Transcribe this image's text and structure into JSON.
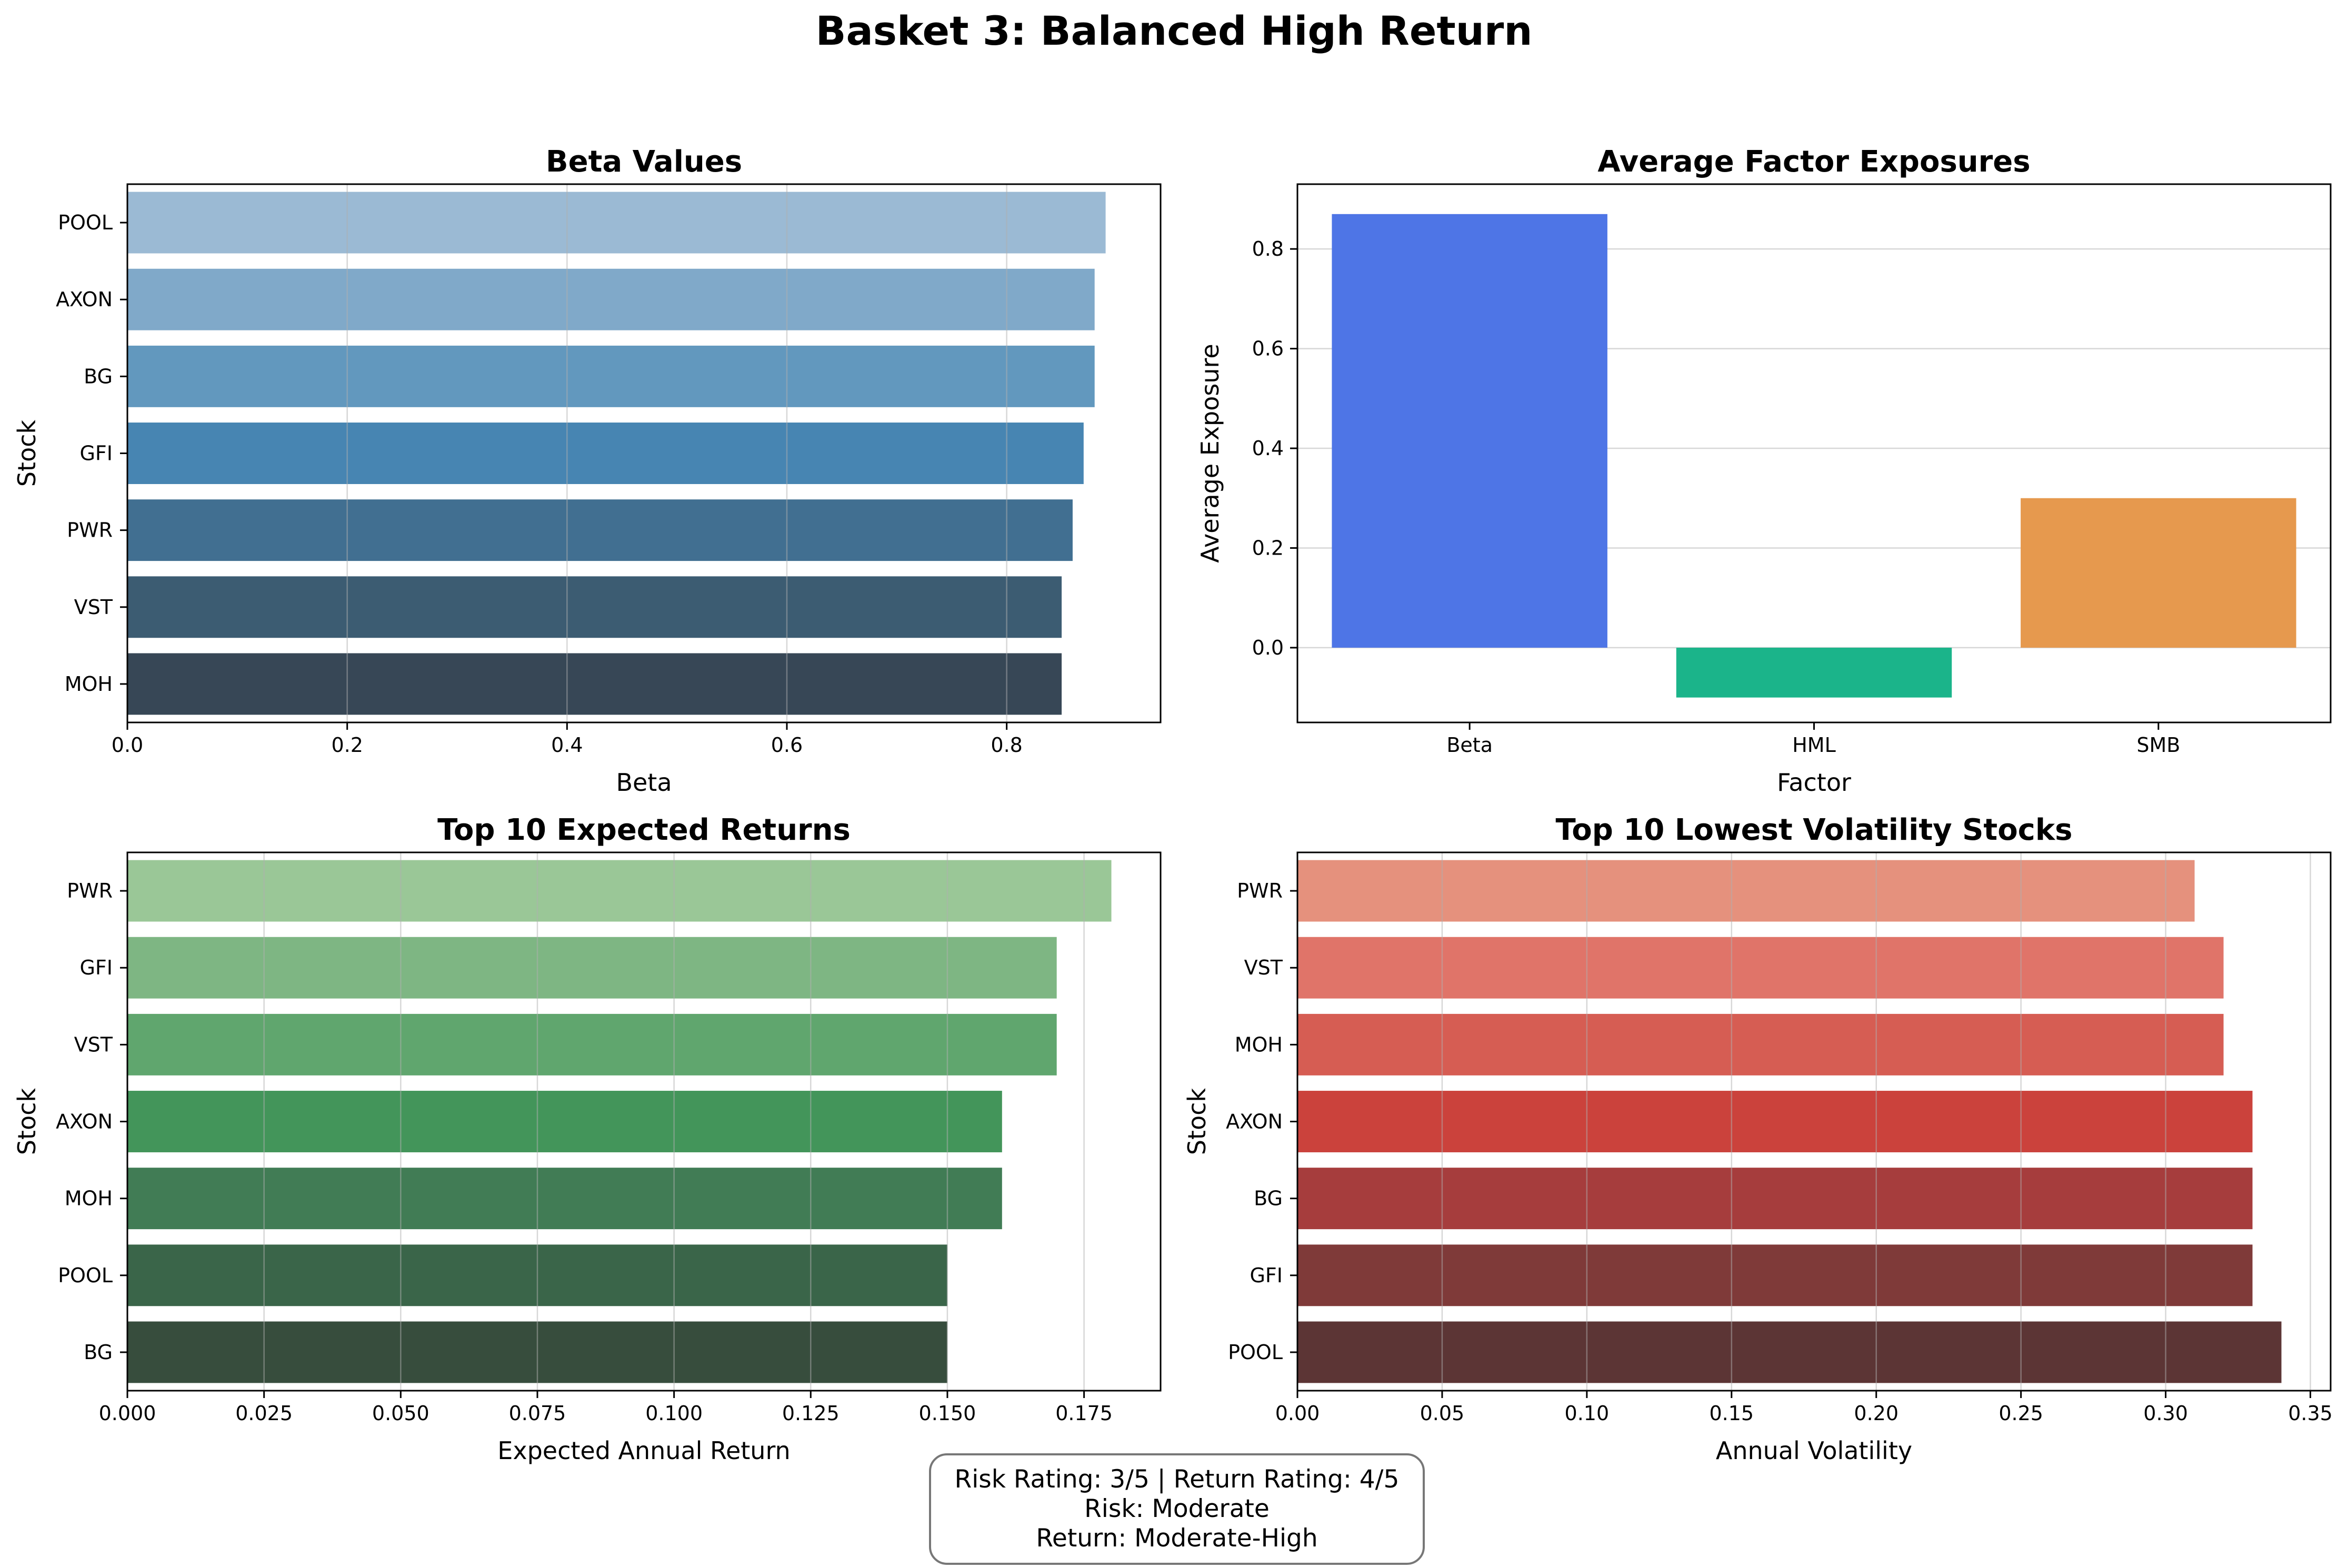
{
  "figure": {
    "title": "Basket 3: Balanced High Return",
    "info_box": {
      "line1": "Risk Rating: 3/5 | Return Rating: 4/5",
      "line2": "Risk: Moderate",
      "line3": "Return: Moderate-High"
    }
  },
  "chart_data": [
    {
      "type": "bar",
      "orientation": "horizontal",
      "title": "Beta Values",
      "xlabel": "Beta",
      "ylabel": "Stock",
      "categories": [
        "POOL",
        "AXON",
        "BG",
        "GFI",
        "PWR",
        "VST",
        "MOH"
      ],
      "values": [
        0.89,
        0.88,
        0.88,
        0.87,
        0.86,
        0.85,
        0.85
      ],
      "colors": [
        "#9BBAD4",
        "#80A9C9",
        "#6298BE",
        "#4785B2",
        "#416F91",
        "#3C5C72",
        "#374756"
      ],
      "xlim": [
        0,
        0.94
      ],
      "xticks": [
        0.0,
        0.2,
        0.4,
        0.6,
        0.8
      ],
      "xtick_labels": [
        "0.0",
        "0.2",
        "0.4",
        "0.6",
        "0.8"
      ],
      "grid": "vertical"
    },
    {
      "type": "bar",
      "orientation": "vertical",
      "title": "Average Factor Exposures",
      "xlabel": "Factor",
      "ylabel": "Average Exposure",
      "categories": [
        "Beta",
        "HML",
        "SMB"
      ],
      "values": [
        0.87,
        -0.1,
        0.3
      ],
      "colors": [
        "#4E75E6",
        "#1BB48A",
        "#E6994E"
      ],
      "ylim": [
        -0.15,
        0.93
      ],
      "yticks": [
        0.0,
        0.2,
        0.4,
        0.6,
        0.8
      ],
      "ytick_labels": [
        "0.0",
        "0.2",
        "0.4",
        "0.6",
        "0.8"
      ],
      "grid": "horizontal"
    },
    {
      "type": "bar",
      "orientation": "horizontal",
      "title": "Top 10 Expected Returns",
      "xlabel": "Expected Annual Return",
      "ylabel": "Stock",
      "categories": [
        "PWR",
        "GFI",
        "VST",
        "AXON",
        "MOH",
        "POOL",
        "BG"
      ],
      "values": [
        0.18,
        0.17,
        0.17,
        0.16,
        0.16,
        0.15,
        0.15
      ],
      "colors": [
        "#9AC797",
        "#7EB683",
        "#60A66E",
        "#43955A",
        "#417C55",
        "#3A6549",
        "#374D3D"
      ],
      "xlim": [
        0,
        0.189
      ],
      "xticks": [
        0.0,
        0.025,
        0.05,
        0.075,
        0.1,
        0.125,
        0.15,
        0.175
      ],
      "xtick_labels": [
        "0.000",
        "0.025",
        "0.050",
        "0.075",
        "0.100",
        "0.125",
        "0.150",
        "0.175"
      ],
      "grid": "vertical"
    },
    {
      "type": "bar",
      "orientation": "horizontal",
      "title": "Top 10 Lowest Volatility Stocks",
      "xlabel": "Annual Volatility",
      "ylabel": "Stock",
      "categories": [
        "PWR",
        "VST",
        "MOH",
        "AXON",
        "BG",
        "GFI",
        "POOL"
      ],
      "values": [
        0.31,
        0.32,
        0.32,
        0.33,
        0.33,
        0.33,
        0.34
      ],
      "colors": [
        "#E5917D",
        "#E07469",
        "#D65D53",
        "#CB423C",
        "#A63D3D",
        "#7F3A39",
        "#5C3535"
      ],
      "xlim": [
        0,
        0.357
      ],
      "xticks": [
        0.0,
        0.05,
        0.1,
        0.15,
        0.2,
        0.25,
        0.3,
        0.35
      ],
      "xtick_labels": [
        "0.00",
        "0.05",
        "0.10",
        "0.15",
        "0.20",
        "0.25",
        "0.30",
        "0.35"
      ],
      "grid": "vertical"
    }
  ]
}
